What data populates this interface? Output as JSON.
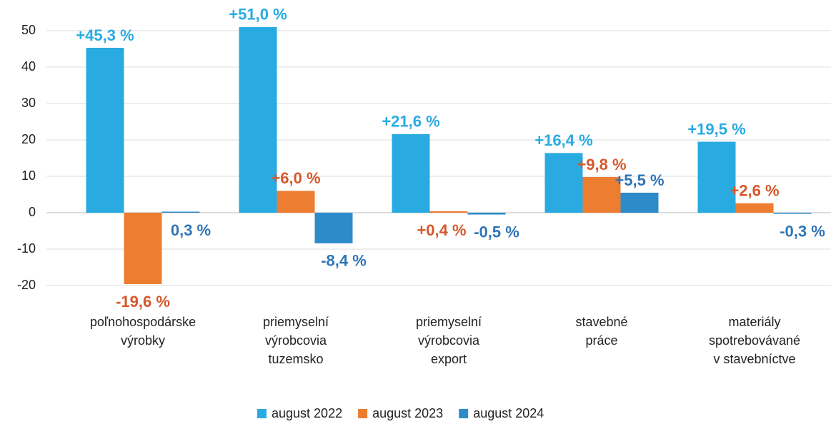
{
  "chart_data": {
    "type": "bar",
    "categories": [
      [
        "poľnohospodárske",
        "výrobky"
      ],
      [
        "priemyselní",
        "výrobcovia",
        "tuzemsko"
      ],
      [
        "priemyselní",
        "výrobcovia",
        "export"
      ],
      [
        "stavebné",
        "práce"
      ],
      [
        "materiály",
        "spotrebovávané",
        "v stavebníctve"
      ]
    ],
    "series": [
      {
        "name": "august 2022",
        "color": "#29abe2",
        "label_color": "#29abe2",
        "values": [
          45.3,
          51.0,
          21.6,
          16.4,
          19.5
        ],
        "value_labels": [
          "+45,3 %",
          "+51,0 %",
          "+21,6 %",
          "+16,4 %",
          "+19,5 %"
        ]
      },
      {
        "name": "august 2023",
        "color": "#ed7d31",
        "label_color": "#d4582a",
        "values": [
          -19.6,
          6.0,
          0.4,
          9.8,
          2.6
        ],
        "value_labels": [
          "-19,6 %",
          "+6,0 %",
          "+0,4 %",
          "+9,8 %",
          "+2,6 %"
        ]
      },
      {
        "name": "august 2024",
        "color": "#2e8bc9",
        "label_color": "#2e75b6",
        "values": [
          0.3,
          -8.4,
          -0.5,
          5.5,
          -0.3
        ],
        "value_labels": [
          "0,3 %",
          "-8,4 %",
          "-0,5 %",
          "+5,5 %",
          "-0,3 %"
        ]
      }
    ],
    "ylim": [
      -24,
      54
    ],
    "yticks": [
      -20,
      -10,
      0,
      10,
      20,
      30,
      40,
      50
    ],
    "grid": true,
    "legend": "bottom"
  }
}
